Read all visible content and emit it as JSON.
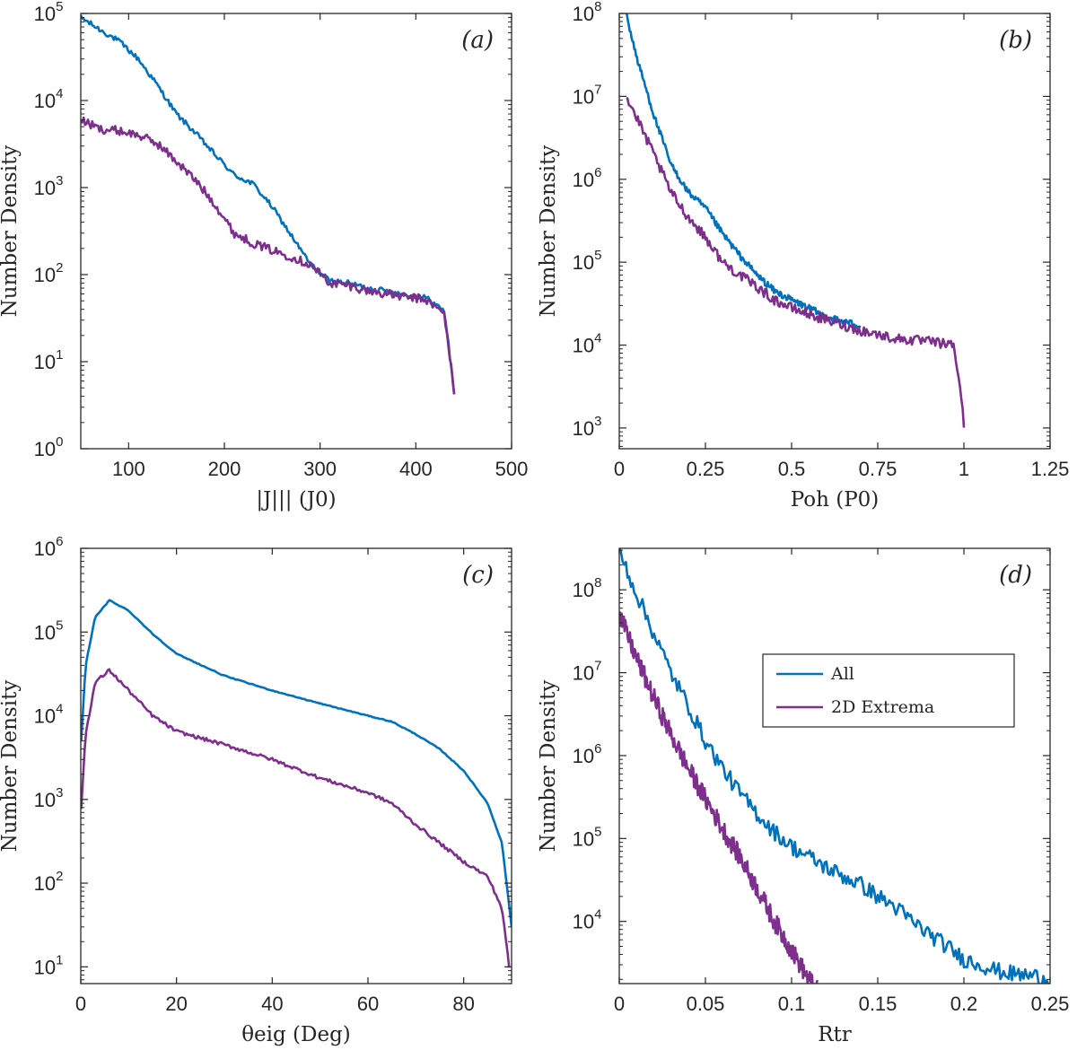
{
  "colors": {
    "all": "#0072BD",
    "extrema": "#7E2F8E",
    "axis": "#262626"
  },
  "legend": {
    "placement": "right-middle of panel d",
    "entries": [
      "All",
      "2D Extrema"
    ]
  },
  "chart_data": [
    {
      "id": "a",
      "type": "line",
      "panel_label": "(a)",
      "xlabel": "|J||| (J0)",
      "ylabel": "Number Density",
      "xlim": [
        50,
        500
      ],
      "ylim_log10": [
        0,
        5
      ],
      "xticks": [
        100,
        200,
        300,
        400,
        500
      ],
      "yticks": [
        {
          "base": "10",
          "exp": "0"
        },
        {
          "base": "10",
          "exp": "1"
        },
        {
          "base": "10",
          "exp": "2"
        },
        {
          "base": "10",
          "exp": "3"
        },
        {
          "base": "10",
          "exp": "4"
        },
        {
          "base": "10",
          "exp": "5"
        }
      ],
      "series": [
        {
          "name": "All",
          "color_key": "all",
          "noise": 0.03,
          "x": [
            50,
            70,
            90,
            110,
            130,
            150,
            170,
            190,
            210,
            230,
            250,
            270,
            290,
            310,
            330,
            350,
            370,
            390,
            410,
            430,
            440
          ],
          "y": [
            90000,
            65000,
            48000,
            30000,
            15000,
            7000,
            4200,
            2400,
            1400,
            1100,
            600,
            280,
            130,
            85,
            80,
            70,
            65,
            58,
            55,
            38,
            4.5
          ]
        },
        {
          "name": "2D Extrema",
          "color_key": "extrema",
          "noise": 0.05,
          "x": [
            50,
            70,
            90,
            110,
            130,
            150,
            170,
            190,
            210,
            230,
            250,
            270,
            290,
            310,
            330,
            350,
            370,
            390,
            410,
            430,
            440
          ],
          "y": [
            6000,
            4700,
            4500,
            4000,
            3200,
            2000,
            1200,
            650,
            300,
            230,
            190,
            160,
            130,
            80,
            75,
            65,
            60,
            55,
            52,
            35,
            4.5
          ]
        }
      ]
    },
    {
      "id": "b",
      "type": "line",
      "panel_label": "(b)",
      "xlabel": "Poh (P0)",
      "ylabel": "Number Density",
      "xlim": [
        0,
        1.25
      ],
      "ylim_log10": [
        2.75,
        8
      ],
      "xticks": [
        "0",
        "0.25",
        "0.5",
        "0.75",
        "1",
        "1.25"
      ],
      "yticks": [
        {
          "base": "10",
          "exp": "3"
        },
        {
          "base": "10",
          "exp": "4"
        },
        {
          "base": "10",
          "exp": "5"
        },
        {
          "base": "10",
          "exp": "6"
        },
        {
          "base": "10",
          "exp": "7"
        },
        {
          "base": "10",
          "exp": "8"
        }
      ],
      "series": [
        {
          "name": "All",
          "color_key": "all",
          "noise": 0.04,
          "x": [
            0.02,
            0.05,
            0.1,
            0.15,
            0.2,
            0.25,
            0.3,
            0.35,
            0.4,
            0.45,
            0.5,
            0.55,
            0.6,
            0.7
          ],
          "y": [
            100000000,
            30000000,
            6000000,
            1500000,
            700000,
            450000,
            220000,
            120000,
            70000,
            45000,
            35000,
            28000,
            22000,
            17000
          ]
        },
        {
          "name": "2D Extrema",
          "color_key": "extrema",
          "noise": 0.06,
          "x": [
            0.02,
            0.05,
            0.1,
            0.15,
            0.2,
            0.25,
            0.3,
            0.35,
            0.4,
            0.45,
            0.5,
            0.6,
            0.7,
            0.8,
            0.9,
            0.97,
            0.99,
            1.0
          ],
          "y": [
            10000000,
            5500000,
            2000000,
            700000,
            350000,
            200000,
            100000,
            70000,
            50000,
            35000,
            28000,
            20000,
            15000,
            12000,
            11000,
            10000,
            3000,
            1000
          ]
        }
      ]
    },
    {
      "id": "c",
      "type": "line",
      "panel_label": "(c)",
      "xlabel": "θeig (Deg)",
      "ylabel": "Number Density",
      "xlim": [
        0,
        90
      ],
      "ylim_log10": [
        0.8,
        6
      ],
      "xticks": [
        0,
        20,
        40,
        60,
        80
      ],
      "yticks": [
        {
          "base": "10",
          "exp": "1"
        },
        {
          "base": "10",
          "exp": "2"
        },
        {
          "base": "10",
          "exp": "3"
        },
        {
          "base": "10",
          "exp": "4"
        },
        {
          "base": "10",
          "exp": "5"
        },
        {
          "base": "10",
          "exp": "6"
        }
      ],
      "series": [
        {
          "name": "All",
          "color_key": "all",
          "noise": 0.005,
          "x": [
            0.1,
            1,
            3,
            6,
            10,
            15,
            20,
            30,
            40,
            50,
            60,
            65,
            70,
            75,
            80,
            85,
            88,
            90
          ],
          "y": [
            5000,
            40000,
            150000,
            240000,
            180000,
            95000,
            55000,
            30000,
            20000,
            14000,
            10000,
            8500,
            6000,
            4000,
            2200,
            900,
            300,
            30
          ]
        },
        {
          "name": "2D Extrema",
          "color_key": "extrema",
          "noise": 0.02,
          "x": [
            0.1,
            1,
            3,
            6,
            10,
            15,
            20,
            30,
            40,
            50,
            60,
            65,
            70,
            75,
            80,
            85,
            88,
            89.5
          ],
          "y": [
            800,
            6000,
            25000,
            35000,
            20000,
            10000,
            6500,
            4500,
            3000,
            1800,
            1200,
            900,
            500,
            300,
            180,
            120,
            50,
            10
          ]
        }
      ]
    },
    {
      "id": "d",
      "type": "line",
      "panel_label": "(d)",
      "xlabel": "Rtr",
      "ylabel": "Number Density",
      "xlim": [
        0,
        0.25
      ],
      "ylim_log10": [
        3.25,
        8.5
      ],
      "xticks": [
        "0",
        "0.05",
        "0.1",
        "0.15",
        "0.2",
        "0.25"
      ],
      "yticks": [
        {
          "base": "10",
          "exp": "4"
        },
        {
          "base": "10",
          "exp": "5"
        },
        {
          "base": "10",
          "exp": "6"
        },
        {
          "base": "10",
          "exp": "7"
        },
        {
          "base": "10",
          "exp": "8"
        }
      ],
      "series": [
        {
          "name": "All",
          "color_key": "all",
          "noise": 0.1,
          "x": [
            0,
            0.01,
            0.02,
            0.03,
            0.04,
            0.05,
            0.06,
            0.07,
            0.08,
            0.09,
            0.1,
            0.11,
            0.12,
            0.13,
            0.14,
            0.15,
            0.16,
            0.17,
            0.18,
            0.19,
            0.2,
            0.21,
            0.22,
            0.23,
            0.24,
            0.25
          ],
          "y": [
            300000000,
            90000000,
            30000000,
            10000000,
            4000000,
            1500000,
            700000,
            350000,
            200000,
            120000,
            80000,
            60000,
            45000,
            35000,
            28000,
            20000,
            15000,
            10000,
            7000,
            5000,
            3500,
            3000,
            2500,
            2300,
            2200,
            2000
          ]
        },
        {
          "name": "2D Extrema",
          "color_key": "extrema",
          "noise": 0.12,
          "x": [
            0,
            0.01,
            0.02,
            0.03,
            0.04,
            0.05,
            0.06,
            0.07,
            0.08,
            0.09,
            0.1,
            0.11,
            0.115
          ],
          "y": [
            50000000,
            15000000,
            5000000,
            1800000,
            700000,
            300000,
            130000,
            60000,
            25000,
            10000,
            4500,
            2000,
            1500
          ]
        }
      ]
    }
  ]
}
